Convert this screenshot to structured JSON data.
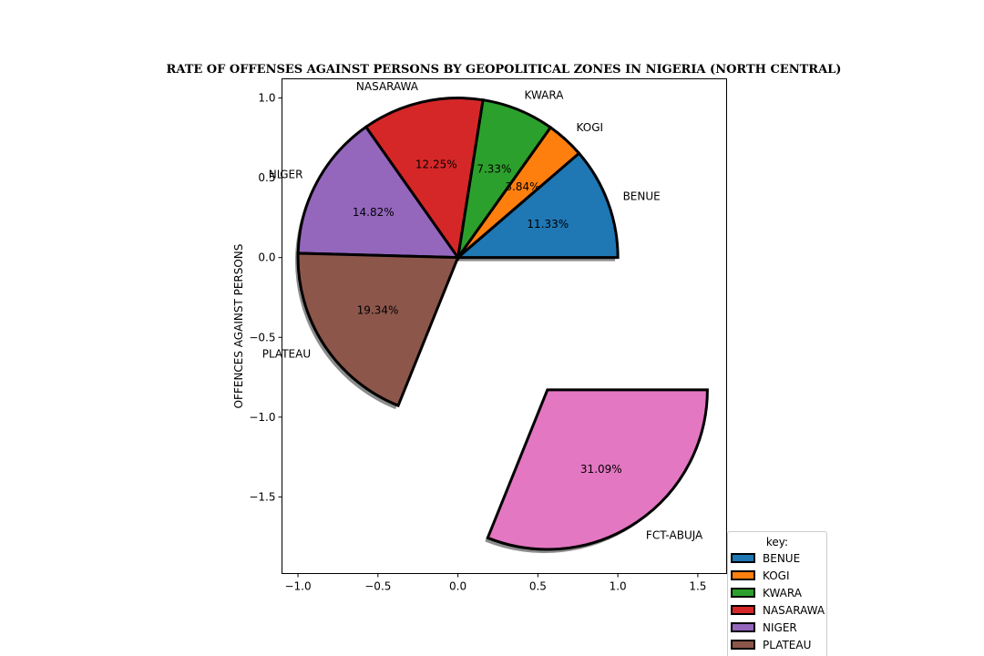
{
  "chart_data": {
    "type": "pie",
    "title": "RATE OF OFFENSES AGAINST PERSONS BY GEOPOLITICAL ZONES IN NIGERIA (NORTH CENTRAL)",
    "ylabel": "OFFENCES AGAINST PERSONS",
    "xlim": [
      -1.1,
      1.68
    ],
    "ylim": [
      -1.98,
      1.12
    ],
    "xticks": [
      "−1.0",
      "−0.5",
      "0.0",
      "0.5",
      "1.0",
      "1.5"
    ],
    "xtick_values": [
      -1.0,
      -0.5,
      0.0,
      0.5,
      1.0,
      1.5
    ],
    "yticks": [
      "1.0",
      "0.5",
      "0.0",
      "−0.5",
      "−1.0",
      "−1.5"
    ],
    "ytick_values": [
      1.0,
      0.5,
      0.0,
      -0.5,
      -1.0,
      -1.5
    ],
    "start_angle_deg": 0,
    "sweep": "counterclockwise",
    "slices": [
      {
        "label": "BENUE",
        "pct_label": "11.33%",
        "value": 11.33,
        "color": "#1f77b4",
        "explode": 0
      },
      {
        "label": "KOGI",
        "pct_label": "3.84%",
        "value": 3.84,
        "color": "#ff7f0e",
        "explode": 0
      },
      {
        "label": "KWARA",
        "pct_label": "7.33%",
        "value": 7.33,
        "color": "#2ca02c",
        "explode": 0
      },
      {
        "label": "NASARAWA",
        "pct_label": "12.25%",
        "value": 12.25,
        "color": "#d62728",
        "explode": 0
      },
      {
        "label": "NIGER",
        "pct_label": "14.82%",
        "value": 14.82,
        "color": "#9467bd",
        "explode": 0
      },
      {
        "label": "PLATEAU",
        "pct_label": "19.34%",
        "value": 19.34,
        "color": "#8c564b",
        "explode": 0
      },
      {
        "label": "FCT-ABUJA",
        "pct_label": "31.09%",
        "value": 31.09,
        "color": "#e377c2",
        "explode": 1.0
      }
    ],
    "shadow": true,
    "legend": {
      "title": "key:",
      "placement": "bottom-right",
      "entries": [
        "BENUE",
        "KOGI",
        "KWARA",
        "NASARAWA",
        "NIGER",
        "PLATEAU"
      ]
    }
  }
}
